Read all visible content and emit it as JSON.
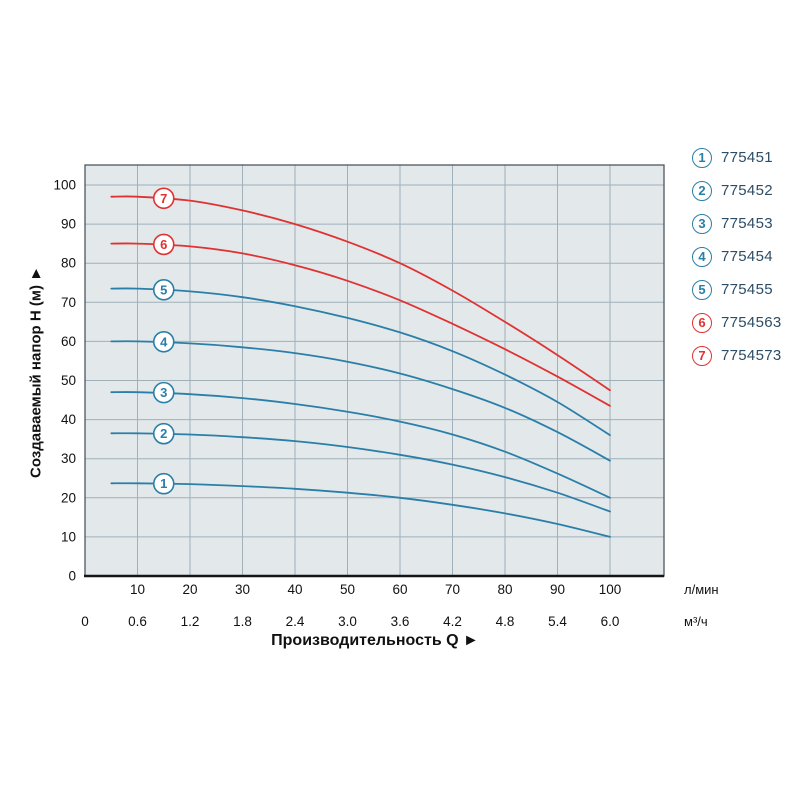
{
  "chart": {
    "y_axis_title": "Создаваемый напор H (м) ►",
    "x_axis_title": "Производительность Q ►",
    "x_unit_primary": "л/мин",
    "x_unit_secondary": "м³/ч"
  },
  "chart_data": {
    "type": "line",
    "title": "",
    "xlabel": "Производительность Q",
    "ylabel": "Создаваемый напор H (м)",
    "x_units": [
      "л/мин",
      "м³/ч"
    ],
    "ylim": [
      0,
      105
    ],
    "xlim_lmin": [
      0,
      110
    ],
    "grid": true,
    "legend_position": "right",
    "y_ticks": [
      0,
      10,
      20,
      30,
      40,
      50,
      60,
      70,
      80,
      90,
      100
    ],
    "x_ticks_lmin": [
      10,
      20,
      30,
      40,
      50,
      60,
      70,
      80,
      90,
      100
    ],
    "x_ticks_m3h": [
      "0",
      "0.6",
      "1.2",
      "1.8",
      "2.4",
      "3.0",
      "3.6",
      "4.2",
      "4.8",
      "5.4",
      "6.0"
    ],
    "colors": {
      "blue": "#2a7fa8",
      "red": "#e03232"
    },
    "series": [
      {
        "id": "1",
        "model": "775451",
        "color": "#2a7fa8",
        "marker": {
          "q": 15,
          "h": 23.6
        },
        "points_q": [
          5,
          10,
          20,
          30,
          40,
          50,
          60,
          70,
          80,
          90,
          100
        ],
        "points_h": [
          23.7,
          23.7,
          23.5,
          23.0,
          22.3,
          21.3,
          20.0,
          18.2,
          16.0,
          13.3,
          10.0
        ]
      },
      {
        "id": "2",
        "model": "775452",
        "color": "#2a7fa8",
        "marker": {
          "q": 15,
          "h": 36.4
        },
        "points_q": [
          5,
          10,
          20,
          30,
          40,
          50,
          60,
          70,
          80,
          90,
          100
        ],
        "points_h": [
          36.5,
          36.5,
          36.2,
          35.5,
          34.5,
          33.0,
          31.0,
          28.5,
          25.3,
          21.3,
          16.5
        ]
      },
      {
        "id": "3",
        "model": "775453",
        "color": "#2a7fa8",
        "marker": {
          "q": 15,
          "h": 46.9
        },
        "points_q": [
          5,
          10,
          20,
          30,
          40,
          50,
          60,
          70,
          80,
          90,
          100
        ],
        "points_h": [
          47.0,
          47.0,
          46.5,
          45.5,
          44.0,
          42.0,
          39.5,
          36.2,
          31.8,
          26.2,
          20.0
        ]
      },
      {
        "id": "4",
        "model": "775454",
        "color": "#2a7fa8",
        "marker": {
          "q": 15,
          "h": 59.9
        },
        "points_q": [
          5,
          10,
          20,
          30,
          40,
          50,
          60,
          70,
          80,
          90,
          100
        ],
        "points_h": [
          60.0,
          60.0,
          59.5,
          58.5,
          57.0,
          54.8,
          51.8,
          47.8,
          43.0,
          36.8,
          29.5
        ]
      },
      {
        "id": "5",
        "model": "775455",
        "color": "#2a7fa8",
        "marker": {
          "q": 15,
          "h": 73.2
        },
        "points_q": [
          5,
          10,
          20,
          30,
          40,
          50,
          60,
          70,
          80,
          90,
          100
        ],
        "points_h": [
          73.5,
          73.5,
          72.8,
          71.3,
          69.0,
          66.0,
          62.3,
          57.5,
          51.5,
          44.5,
          36.0
        ]
      },
      {
        "id": "6",
        "model": "7754563",
        "color": "#e03232",
        "marker": {
          "q": 15,
          "h": 84.8
        },
        "points_q": [
          5,
          10,
          20,
          30,
          40,
          50,
          60,
          70,
          80,
          90,
          100
        ],
        "points_h": [
          85.0,
          85.0,
          84.3,
          82.5,
          79.5,
          75.5,
          70.5,
          64.5,
          58.0,
          51.0,
          43.5
        ]
      },
      {
        "id": "7",
        "model": "7754573",
        "color": "#e03232",
        "marker": {
          "q": 15,
          "h": 96.6
        },
        "points_q": [
          5,
          10,
          20,
          30,
          40,
          50,
          60,
          70,
          80,
          90,
          100
        ],
        "points_h": [
          97.0,
          97.0,
          96.0,
          93.5,
          90.0,
          85.5,
          80.0,
          73.0,
          65.0,
          56.5,
          47.5
        ]
      }
    ]
  }
}
